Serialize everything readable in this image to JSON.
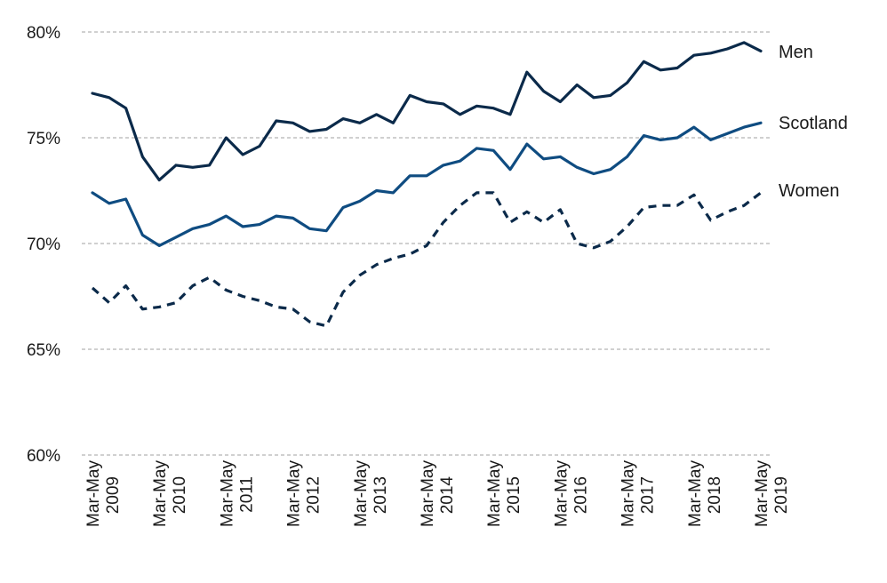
{
  "chart_data": {
    "type": "line",
    "xlabel": "",
    "ylabel": "",
    "ylim": [
      60,
      80
    ],
    "yticks": [
      "60%",
      "65%",
      "70%",
      "75%",
      "80%"
    ],
    "ytick_values": [
      60,
      65,
      70,
      75,
      80
    ],
    "grid": true,
    "xtick_labels": [
      {
        "period": "Mar-May",
        "year": "2009"
      },
      {
        "period": "Mar-May",
        "year": "2010"
      },
      {
        "period": "Mar-May",
        "year": "2011"
      },
      {
        "period": "Mar-May",
        "year": "2012"
      },
      {
        "period": "Mar-May",
        "year": "2013"
      },
      {
        "period": "Mar-May",
        "year": "2014"
      },
      {
        "period": "Mar-May",
        "year": "2015"
      },
      {
        "period": "Mar-May",
        "year": "2016"
      },
      {
        "period": "Mar-May",
        "year": "2017"
      },
      {
        "period": "Mar-May",
        "year": "2018"
      },
      {
        "period": "Mar-May",
        "year": "2019"
      }
    ],
    "series": [
      {
        "name": "Men",
        "color": "#0b2a4a",
        "dash": "solid",
        "values": [
          77.1,
          76.9,
          76.4,
          74.1,
          73.0,
          73.7,
          73.6,
          73.7,
          75.0,
          74.2,
          74.6,
          75.8,
          75.7,
          75.3,
          75.4,
          75.9,
          75.7,
          76.1,
          75.7,
          77.0,
          76.7,
          76.6,
          76.1,
          76.5,
          76.4,
          76.1,
          78.1,
          77.2,
          76.7,
          77.5,
          76.9,
          77.0,
          77.6,
          78.6,
          78.2,
          78.3,
          78.9,
          79.0,
          79.2,
          79.5,
          79.1
        ]
      },
      {
        "name": "Scotland",
        "color": "#0f4c81",
        "dash": "solid",
        "values": [
          72.4,
          71.9,
          72.1,
          70.4,
          69.9,
          70.3,
          70.7,
          70.9,
          71.3,
          70.8,
          70.9,
          71.3,
          71.2,
          70.7,
          70.6,
          71.7,
          72.0,
          72.5,
          72.4,
          73.2,
          73.2,
          73.7,
          73.9,
          74.5,
          74.4,
          73.5,
          74.7,
          74.0,
          74.1,
          73.6,
          73.3,
          73.5,
          74.1,
          75.1,
          74.9,
          75.0,
          75.5,
          74.9,
          75.2,
          75.5,
          75.7
        ]
      },
      {
        "name": "Women",
        "color": "#0b2a4a",
        "dash": "dashed",
        "values": [
          67.9,
          67.2,
          68.0,
          66.9,
          67.0,
          67.2,
          68.0,
          68.4,
          67.8,
          67.5,
          67.3,
          67.0,
          66.9,
          66.3,
          66.1,
          67.7,
          68.5,
          69.0,
          69.3,
          69.5,
          69.9,
          71.0,
          71.8,
          72.4,
          72.4,
          71.0,
          71.5,
          71.0,
          71.6,
          70.0,
          69.8,
          70.1,
          70.8,
          71.7,
          71.8,
          71.8,
          72.3,
          71.1,
          71.5,
          71.8,
          72.4
        ]
      }
    ]
  }
}
